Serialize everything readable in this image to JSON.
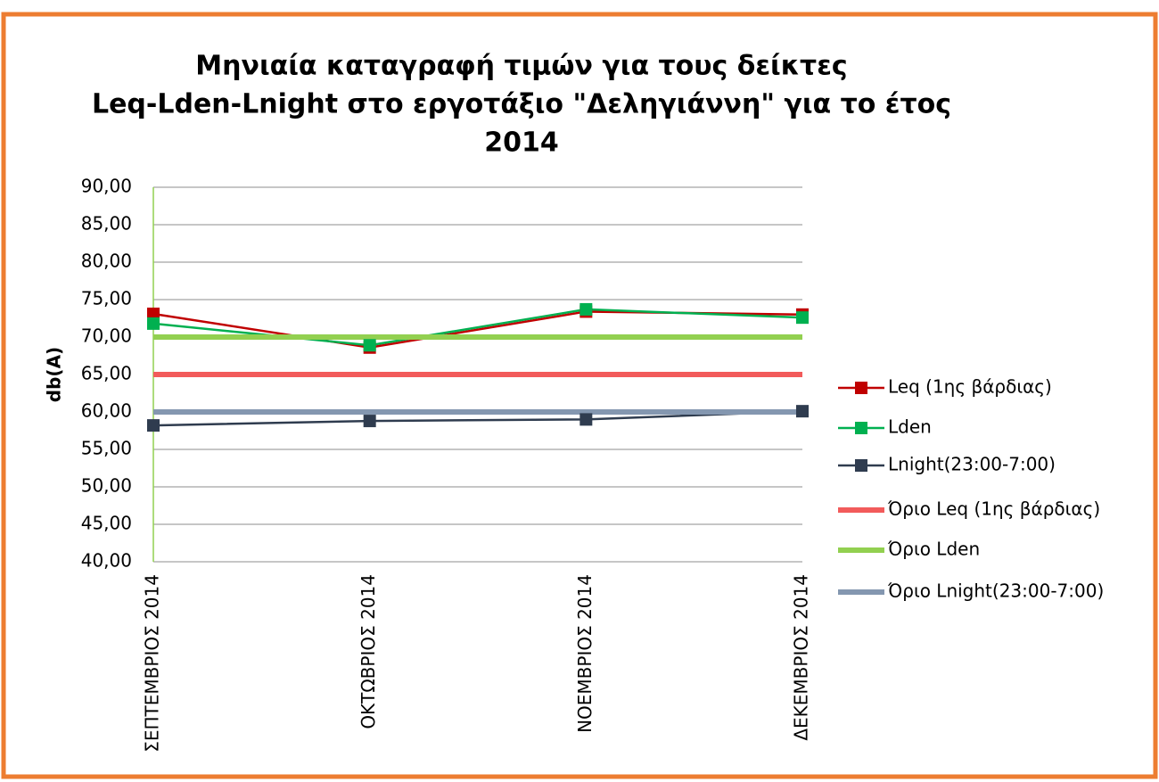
{
  "chart_data": {
    "type": "line",
    "title": [
      "Μηνιαία καταγραφή τιμών για τους δείκτες",
      "Leq-Lden-Lnight στο εργοτάξιο \"Δεληγιάννη\" για το έτος",
      "2014"
    ],
    "y_label": "db(A)",
    "categories": [
      "ΣΕΠΤΕΜΒΡΙΟΣ 2014",
      "ΟΚΤΩΒΡΙΟΣ 2014",
      "ΝΟΕΜΒΡΙΟΣ 2014",
      "ΔΕΚΕΜΒΡΙΟΣ 2014"
    ],
    "series": [
      {
        "name": "Leq (1ης βάρδιας)",
        "color": "#c00000",
        "marker": "square",
        "values": [
          73.1,
          68.6,
          73.4,
          73.0
        ]
      },
      {
        "name": "Lden",
        "color": "#00b050",
        "marker": "square",
        "values": [
          71.8,
          68.9,
          73.7,
          72.6
        ]
      },
      {
        "name": "Lnight(23:00-7:00)",
        "color": "#2f3c4f",
        "marker": "square",
        "values": [
          58.2,
          58.8,
          59.0,
          60.1
        ]
      },
      {
        "name": "Όριο Leq (1ης βάρδιας)",
        "color": "#f25b5b",
        "values": [
          65,
          65,
          65,
          65
        ]
      },
      {
        "name": "Όριο Lden",
        "color": "#92d050",
        "values": [
          70,
          70,
          70,
          70
        ]
      },
      {
        "name": "Όριο Lnight(23:00-7:00)",
        "color": "#8497b0",
        "values": [
          60,
          60,
          60,
          60
        ]
      }
    ],
    "ylim": [
      40,
      90
    ],
    "yticks": [
      {
        "value": 40,
        "label": "40,00"
      },
      {
        "value": 45,
        "label": "45,00"
      },
      {
        "value": 50,
        "label": "50,00"
      },
      {
        "value": 55,
        "label": "55,00"
      },
      {
        "value": 60,
        "label": "60,00"
      },
      {
        "value": 65,
        "label": "65,00"
      },
      {
        "value": 70,
        "label": "70,00"
      },
      {
        "value": 75,
        "label": "75,00"
      },
      {
        "value": 80,
        "label": "80,00"
      },
      {
        "value": 85,
        "label": "85,00"
      },
      {
        "value": 90,
        "label": "90,00"
      }
    ],
    "grid": true,
    "legend": "right"
  }
}
